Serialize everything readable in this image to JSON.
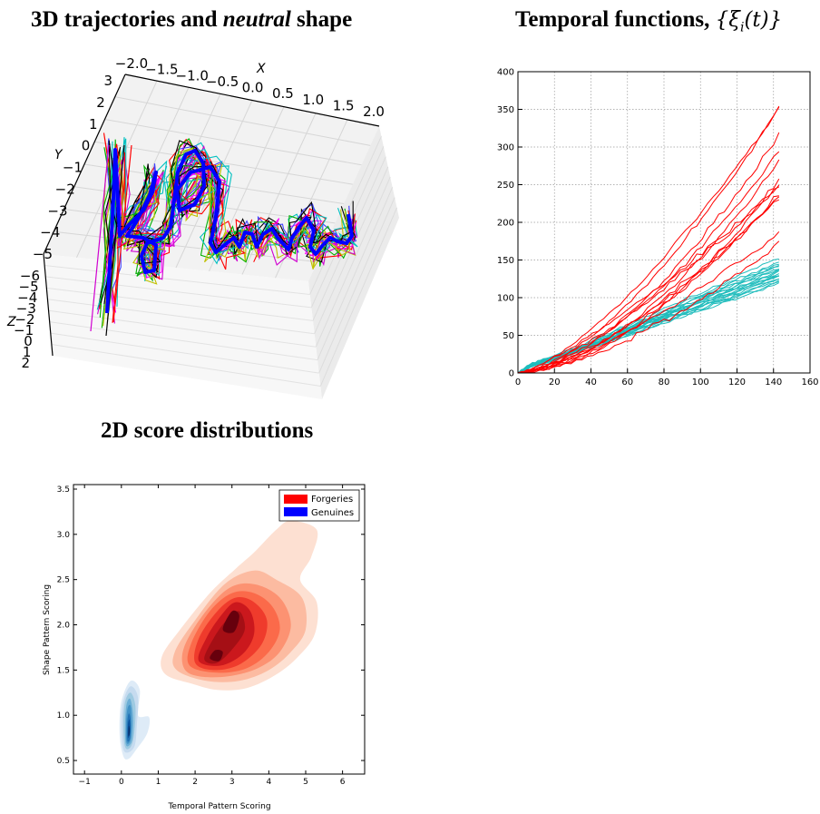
{
  "titles": {
    "traj_prefix": "3D trajectories and ",
    "traj_italic": "neutral",
    "traj_suffix": " shape",
    "temporal_text": "Temporal functions,",
    "temporal_math": "{ξ",
    "temporal_sub": "i",
    "temporal_math_end": "(t)}",
    "score": "2D score distributions"
  },
  "colors": {
    "forgery": "#ff0000",
    "genuine": "#1fbcbc",
    "neutral_shape": "#0000ff"
  },
  "chart_data": [
    {
      "id": "trajectories_3d",
      "type": "line",
      "title": "3D trajectories and neutral shape",
      "axis_labels": {
        "x": "X",
        "y": "Y",
        "z": "Z"
      },
      "x_ticks": [
        "−2.0",
        "−1.5",
        "−1.0",
        "−0.5",
        "0.0",
        "0.5",
        "1.0",
        "1.5",
        "2.0"
      ],
      "y_ticks": [
        "3",
        "2",
        "1",
        "0",
        "−1",
        "−2",
        "−3",
        "−4",
        "−5"
      ],
      "z_ticks": [
        "−6",
        "−5",
        "−4",
        "−3",
        "−2",
        "−1",
        "0",
        "1",
        "2"
      ],
      "grid": true,
      "trajectory_colors": [
        "#d000d0",
        "#00b000",
        "#ff0000",
        "#00c0c0",
        "#c0c000",
        "#000000",
        "#ff00ff",
        "#4040ff"
      ],
      "neutral_color": "#0000ff"
    },
    {
      "id": "temporal_functions",
      "type": "line",
      "title": "Temporal functions, {ξi(t)}",
      "xlim": [
        0,
        160
      ],
      "ylim": [
        0,
        400
      ],
      "x_ticks": [
        0,
        20,
        40,
        60,
        80,
        100,
        120,
        140,
        160
      ],
      "y_ticks": [
        0,
        50,
        100,
        150,
        200,
        250,
        300,
        350,
        400
      ],
      "grid": true,
      "x_end": 145,
      "forgeries_end_values": [
        360,
        357,
        322,
        300,
        285,
        262,
        253,
        250,
        242,
        238,
        235,
        188,
        175
      ],
      "genuines_end_values": [
        155,
        150,
        147,
        145,
        143,
        141,
        140,
        138,
        136,
        135,
        133,
        131,
        130,
        128,
        126,
        124,
        122,
        120
      ]
    },
    {
      "id": "score_distributions",
      "type": "heatmap",
      "title": "2D score distributions",
      "xlabel": "Temporal Pattern Scoring",
      "ylabel": "Shape Pattern Scoring",
      "xlim": [
        -1.3,
        6.6
      ],
      "ylim": [
        0.35,
        3.55
      ],
      "x_ticks": [
        -1,
        0,
        1,
        2,
        3,
        4,
        5,
        6
      ],
      "y_ticks": [
        0.5,
        1.0,
        1.5,
        2.0,
        2.5,
        3.0,
        3.5
      ],
      "legend": {
        "position": "top-right",
        "entries": [
          "Forgeries",
          "Genuines"
        ],
        "colors": [
          "#ff0000",
          "#0000ff"
        ]
      },
      "forgeries_density": {
        "center": [
          2.9,
          2.0
        ],
        "modes": [
          [
            2.5,
            1.65
          ],
          [
            2.95,
            2.1
          ]
        ]
      },
      "genuines_density": {
        "center": [
          0.2,
          0.85
        ]
      }
    }
  ]
}
